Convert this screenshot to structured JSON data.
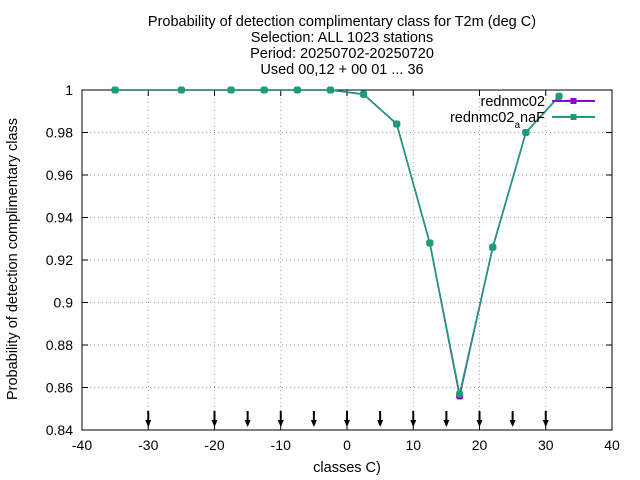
{
  "chart_data": {
    "type": "line",
    "title_lines": [
      "Probability of detection complimentary class  for T2m (deg C)",
      "Selection: ALL   1023 stations",
      "Period: 20250702-20250720",
      "Used 00,12 + 00 01 ... 36"
    ],
    "xlabel": "classes C)",
    "ylabel": "Probability of detection complimentary class",
    "xlim": [
      -40,
      40
    ],
    "ylim": [
      0.84,
      1.0
    ],
    "xticks": [
      -40,
      -30,
      -20,
      -10,
      0,
      10,
      20,
      30,
      40
    ],
    "yticks": [
      0.84,
      0.86,
      0.88,
      0.9,
      0.92,
      0.94,
      0.96,
      0.98,
      1.0
    ],
    "xtick_labels": [
      "-40",
      "-30",
      "-20",
      "-10",
      "0",
      "10",
      "20",
      "30",
      "40"
    ],
    "ytick_labels": [
      "0.84",
      "0.86",
      "0.88",
      "0.9",
      "0.92",
      "0.94",
      "0.96",
      "0.98",
      "1"
    ],
    "grid": true,
    "legend_position": "top-right",
    "series": [
      {
        "name": "rednmc02",
        "color": "#9400d3",
        "x": [
          -35,
          -25,
          -17.5,
          -12.5,
          -7.5,
          -2.5,
          2.5,
          7.5,
          12.5,
          17,
          22,
          27,
          32
        ],
        "y": [
          1.0,
          1.0,
          1.0,
          1.0,
          1.0,
          1.0,
          0.998,
          0.984,
          0.928,
          0.856,
          0.926,
          0.98,
          0.997
        ]
      },
      {
        "name_main": "rednmc02",
        "name_sub": "a",
        "name_tail": "naF",
        "color": "#1a9e77",
        "x": [
          -35,
          -25,
          -17.5,
          -12.5,
          -7.5,
          -2.5,
          2.5,
          7.5,
          12.5,
          17,
          22,
          27,
          32
        ],
        "y": [
          1.0,
          1.0,
          1.0,
          1.0,
          1.0,
          1.0,
          0.998,
          0.984,
          0.928,
          0.857,
          0.926,
          0.98,
          0.997
        ]
      }
    ],
    "markers_x": [
      -30,
      -20,
      -15,
      -10,
      -5,
      0,
      5,
      10,
      15,
      20,
      25,
      30
    ]
  }
}
